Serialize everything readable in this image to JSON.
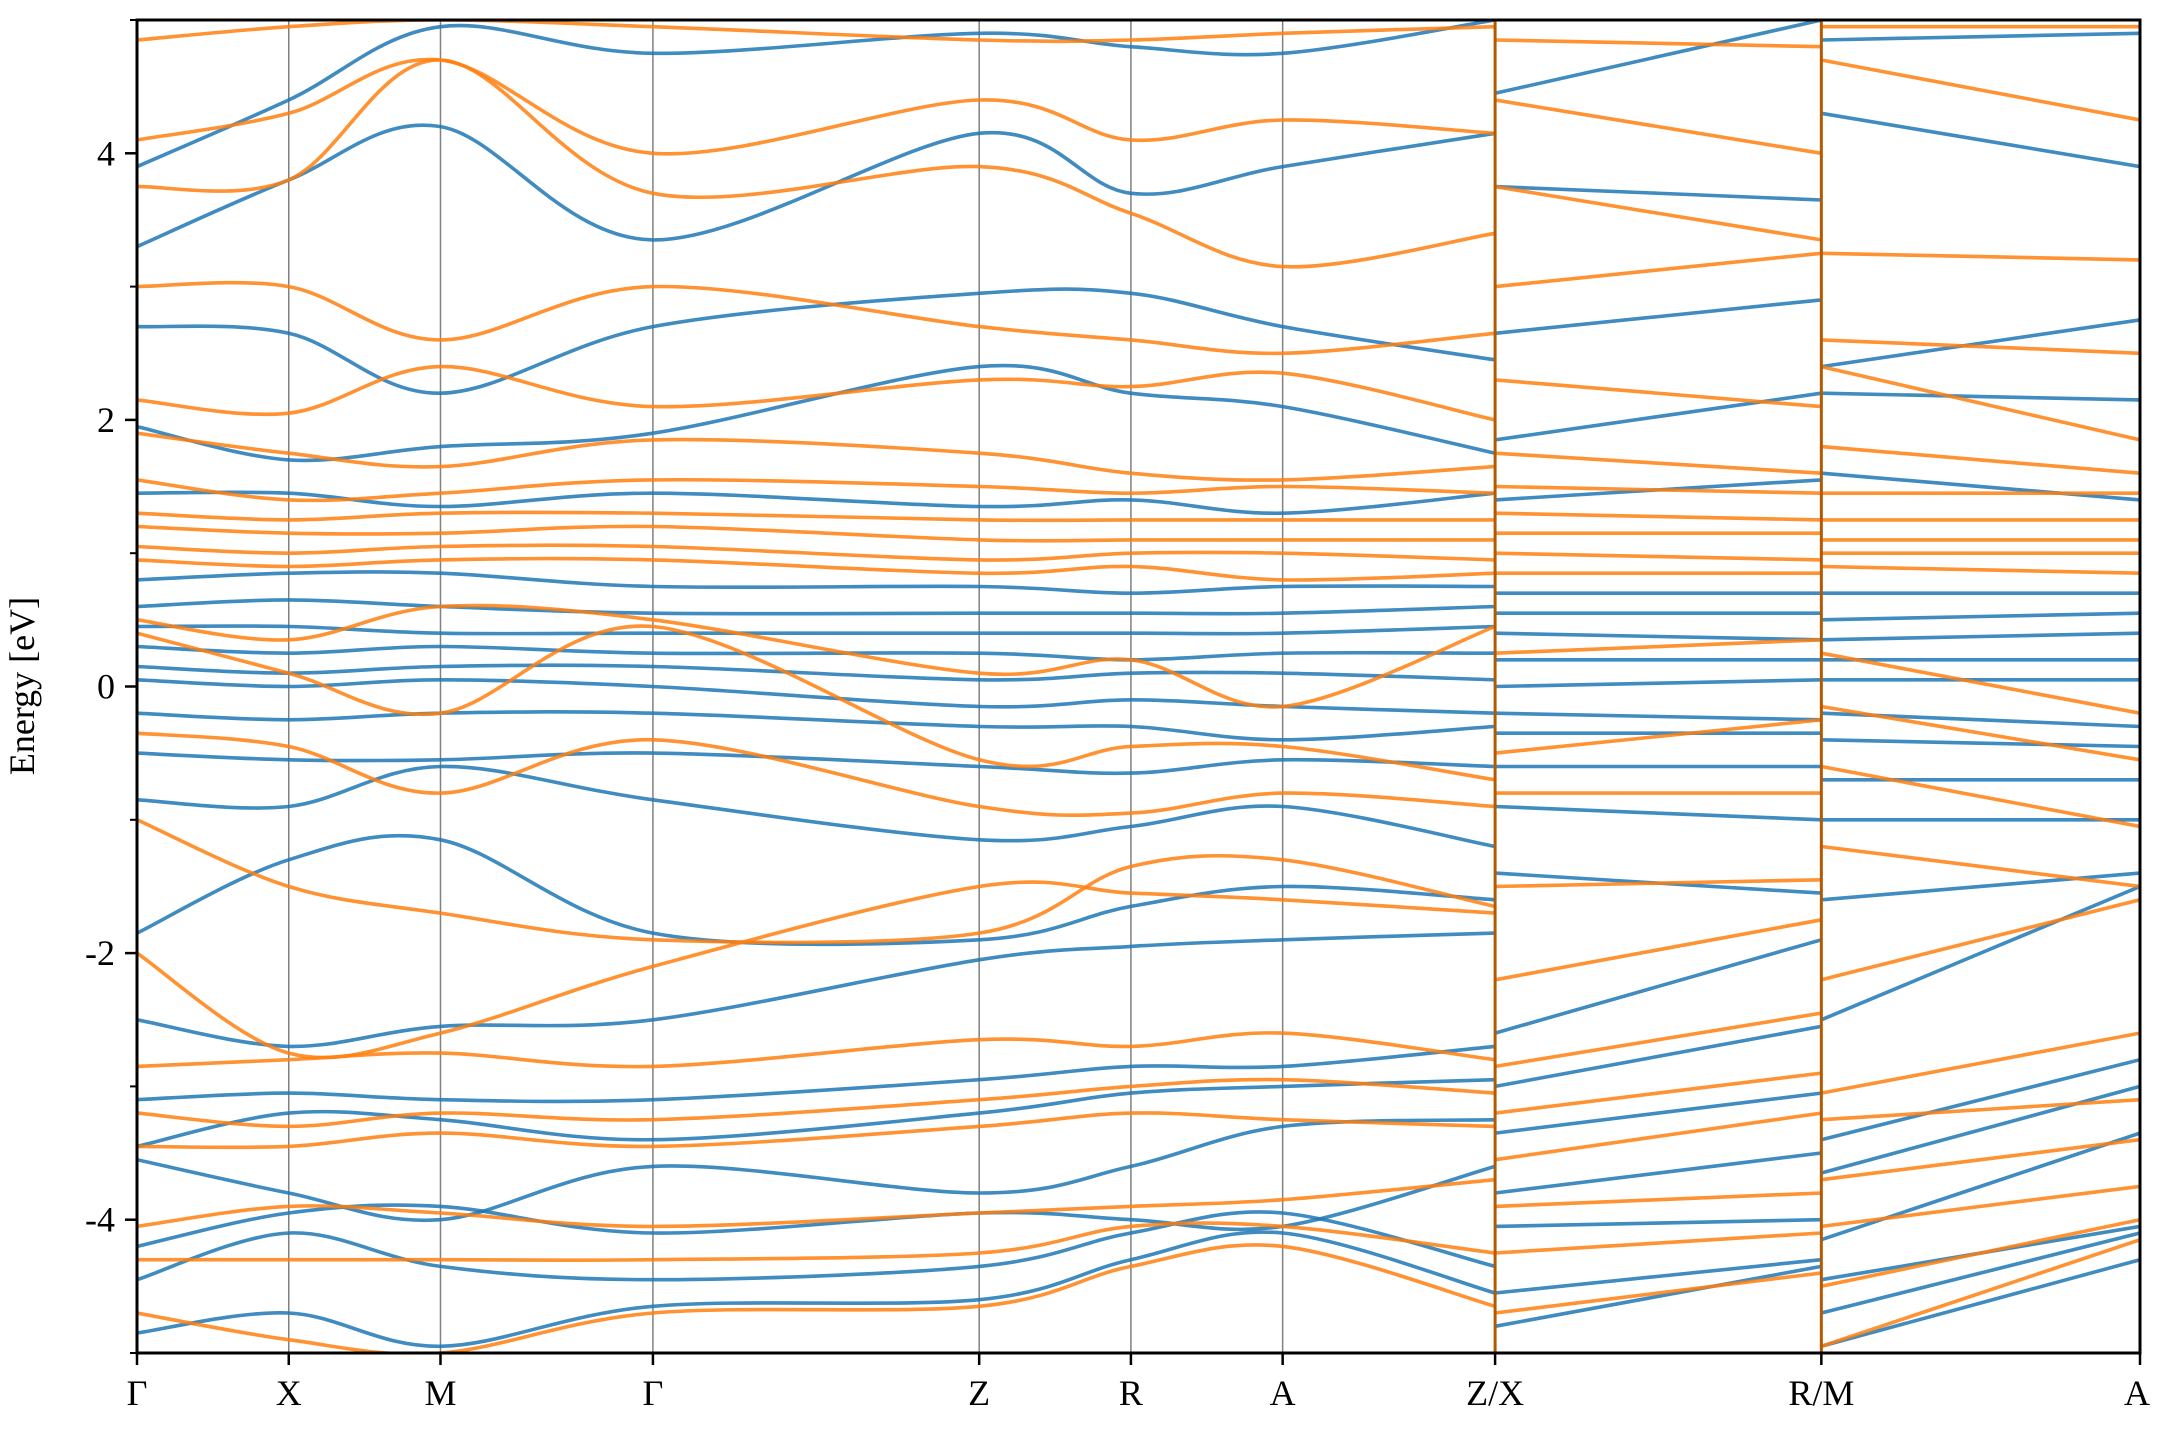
{
  "chart_data": {
    "type": "line",
    "title": "",
    "xlabel": "",
    "ylabel": "Energy [eV]",
    "ylim": [
      -5,
      5
    ],
    "y_ticks": [
      -4,
      -2,
      0,
      2,
      4
    ],
    "y_tick_labels": [
      "-4",
      "-2",
      "0",
      "2",
      "4"
    ],
    "y_minor_ticks": [
      -5,
      -3,
      -1,
      1,
      3,
      5
    ],
    "x_ticks": [
      0,
      1,
      2,
      3.4,
      5.55,
      6.55,
      7.55,
      8.95,
      11.1,
      13.2
    ],
    "x_tick_labels": [
      "Γ",
      "X",
      "M",
      "Γ",
      "Z",
      "R",
      "A",
      "Z/X",
      "R/M",
      "A"
    ],
    "xlim": [
      0,
      13.2
    ],
    "segment_breaks": [
      8.95,
      11.1
    ],
    "grid": "vertical lines at high-symmetry points",
    "legend": "none",
    "colors": {
      "spin_up": "#1f77b4",
      "spin_down": "#ff7f0e",
      "vline": "#808080",
      "frame": "#000000"
    },
    "series": [
      {
        "color": "spin_up",
        "x": [
          0,
          1,
          2,
          3.4,
          5.55,
          6.55,
          7.55,
          8.95,
          8.95,
          11.1,
          11.1,
          13.2
        ],
        "bands": [
          [
            -4.85,
            -4.7,
            -4.95,
            -4.65,
            -4.6,
            -4.3,
            -4.1,
            -4.55,
            -4.8,
            -4.35,
            -4.95,
            -4.3
          ],
          [
            -4.45,
            -4.1,
            -4.35,
            -4.45,
            -4.35,
            -4.1,
            -3.95,
            -4.35,
            -4.55,
            -4.3,
            -4.7,
            -4.1
          ],
          [
            -4.2,
            -3.95,
            -3.9,
            -4.1,
            -3.95,
            -4.0,
            -4.05,
            -3.6,
            -4.05,
            -4.0,
            -4.45,
            -4.05
          ],
          [
            -3.55,
            -3.8,
            -4.0,
            -3.6,
            -3.8,
            -3.6,
            -3.3,
            -3.25,
            -3.8,
            -3.5,
            -4.15,
            -3.35
          ],
          [
            -3.45,
            -3.2,
            -3.25,
            -3.4,
            -3.2,
            -3.05,
            -3.0,
            -2.95,
            -3.35,
            -3.05,
            -3.65,
            -3.0
          ],
          [
            -3.1,
            -3.05,
            -3.1,
            -3.1,
            -2.95,
            -2.85,
            -2.85,
            -2.7,
            -3.0,
            -2.55,
            -3.4,
            -2.8
          ],
          [
            -2.5,
            -2.7,
            -2.55,
            -2.5,
            -2.05,
            -1.95,
            -1.9,
            -1.85,
            -2.6,
            -1.9,
            -2.5,
            -1.5
          ],
          [
            -1.85,
            -1.3,
            -1.15,
            -1.85,
            -1.9,
            -1.65,
            -1.5,
            -1.6,
            -1.4,
            -1.55,
            -1.6,
            -1.4
          ],
          [
            -0.85,
            -0.9,
            -0.6,
            -0.85,
            -1.15,
            -1.05,
            -0.9,
            -1.2,
            -0.9,
            -1.0,
            -1.0,
            -1.0
          ],
          [
            -0.5,
            -0.55,
            -0.55,
            -0.5,
            -0.6,
            -0.65,
            -0.55,
            -0.6,
            -0.6,
            -0.6,
            -0.7,
            -0.7
          ],
          [
            -0.2,
            -0.25,
            -0.2,
            -0.2,
            -0.3,
            -0.3,
            -0.4,
            -0.3,
            -0.35,
            -0.35,
            -0.4,
            -0.45
          ],
          [
            0.05,
            0.0,
            0.05,
            0.0,
            -0.15,
            -0.1,
            -0.15,
            -0.2,
            -0.2,
            -0.25,
            -0.2,
            -0.3
          ],
          [
            0.15,
            0.1,
            0.15,
            0.15,
            0.05,
            0.1,
            0.1,
            0.05,
            0.0,
            0.05,
            0.05,
            0.05
          ],
          [
            0.3,
            0.25,
            0.3,
            0.25,
            0.25,
            0.2,
            0.25,
            0.25,
            0.2,
            0.2,
            0.2,
            0.2
          ],
          [
            0.45,
            0.45,
            0.4,
            0.4,
            0.4,
            0.4,
            0.4,
            0.45,
            0.4,
            0.35,
            0.35,
            0.4
          ],
          [
            0.6,
            0.65,
            0.6,
            0.55,
            0.55,
            0.55,
            0.55,
            0.6,
            0.55,
            0.55,
            0.5,
            0.55
          ],
          [
            0.8,
            0.85,
            0.85,
            0.75,
            0.75,
            0.7,
            0.75,
            0.75,
            0.7,
            0.7,
            0.7,
            0.7
          ],
          [
            1.45,
            1.45,
            1.35,
            1.45,
            1.35,
            1.4,
            1.3,
            1.45,
            1.4,
            1.55,
            1.6,
            1.4
          ],
          [
            1.95,
            1.7,
            1.8,
            1.9,
            2.4,
            2.2,
            2.1,
            1.75,
            1.85,
            2.2,
            2.2,
            2.15
          ],
          [
            2.7,
            2.65,
            2.2,
            2.7,
            2.95,
            2.95,
            2.7,
            2.45,
            2.65,
            2.9,
            2.4,
            2.75
          ],
          [
            3.3,
            3.8,
            4.2,
            3.35,
            4.15,
            3.7,
            3.9,
            4.15,
            3.75,
            3.65,
            4.3,
            3.9
          ],
          [
            3.9,
            4.4,
            4.95,
            4.75,
            4.9,
            4.8,
            4.75,
            5.0,
            4.45,
            5.0,
            4.85,
            4.9
          ]
        ]
      },
      {
        "color": "spin_down",
        "x": [
          0,
          1,
          2,
          3.4,
          5.55,
          6.55,
          7.55,
          8.95,
          8.95,
          11.1,
          11.1,
          13.2
        ],
        "bands": [
          [
            -4.7,
            -4.9,
            -5.0,
            -4.7,
            -4.65,
            -4.35,
            -4.2,
            -4.65,
            -4.7,
            -4.4,
            -4.95,
            -4.15
          ],
          [
            -4.3,
            -4.3,
            -4.3,
            -4.3,
            -4.25,
            -4.05,
            -4.05,
            -4.25,
            -4.25,
            -4.1,
            -4.5,
            -4.0
          ],
          [
            -4.05,
            -3.9,
            -3.95,
            -4.05,
            -3.95,
            -3.9,
            -3.85,
            -3.7,
            -3.9,
            -3.8,
            -4.05,
            -3.75
          ],
          [
            -3.45,
            -3.45,
            -3.35,
            -3.45,
            -3.3,
            -3.2,
            -3.25,
            -3.3,
            -3.55,
            -3.2,
            -3.7,
            -3.4
          ],
          [
            -3.2,
            -3.3,
            -3.2,
            -3.25,
            -3.1,
            -3.0,
            -2.95,
            -3.05,
            -3.2,
            -2.9,
            -3.25,
            -3.1
          ],
          [
            -2.85,
            -2.8,
            -2.75,
            -2.85,
            -2.65,
            -2.7,
            -2.6,
            -2.8,
            -2.85,
            -2.45,
            -3.05,
            -2.6
          ],
          [
            -2.0,
            -2.75,
            -2.6,
            -2.1,
            -1.5,
            -1.55,
            -1.6,
            -1.7,
            -2.2,
            -1.75,
            -2.2,
            -1.6
          ],
          [
            -1.0,
            -1.5,
            -1.7,
            -1.9,
            -1.85,
            -1.35,
            -1.3,
            -1.65,
            -1.5,
            -1.45,
            -1.2,
            -1.5
          ],
          [
            -0.35,
            -0.45,
            -0.8,
            -0.4,
            -0.9,
            -0.95,
            -0.8,
            -0.9,
            -0.8,
            -0.8,
            -0.6,
            -1.05
          ],
          [
            0.4,
            0.1,
            -0.2,
            0.45,
            -0.55,
            -0.45,
            -0.45,
            -0.7,
            -0.5,
            -0.25,
            -0.15,
            -0.55
          ],
          [
            0.5,
            0.35,
            0.6,
            0.5,
            0.1,
            0.2,
            -0.15,
            0.45,
            0.25,
            0.35,
            0.25,
            -0.2
          ],
          [
            0.95,
            0.9,
            0.95,
            0.95,
            0.85,
            0.9,
            0.8,
            0.85,
            0.85,
            0.85,
            0.9,
            0.85
          ],
          [
            1.05,
            1.0,
            1.05,
            1.05,
            0.95,
            1.0,
            1.0,
            0.95,
            1.0,
            0.95,
            1.0,
            1.0
          ],
          [
            1.2,
            1.15,
            1.15,
            1.2,
            1.1,
            1.1,
            1.1,
            1.1,
            1.15,
            1.15,
            1.1,
            1.1
          ],
          [
            1.3,
            1.25,
            1.3,
            1.3,
            1.25,
            1.25,
            1.25,
            1.25,
            1.3,
            1.25,
            1.25,
            1.25
          ],
          [
            1.55,
            1.4,
            1.45,
            1.55,
            1.5,
            1.45,
            1.5,
            1.45,
            1.5,
            1.45,
            1.45,
            1.45
          ],
          [
            1.9,
            1.75,
            1.65,
            1.85,
            1.75,
            1.6,
            1.55,
            1.65,
            1.75,
            1.6,
            1.8,
            1.6
          ],
          [
            2.15,
            2.05,
            2.4,
            2.1,
            2.3,
            2.25,
            2.35,
            2.0,
            2.3,
            2.1,
            2.4,
            1.85
          ],
          [
            3.0,
            3.0,
            2.6,
            3.0,
            2.7,
            2.6,
            2.5,
            2.65,
            3.0,
            3.25,
            2.6,
            2.5
          ],
          [
            3.75,
            3.8,
            4.7,
            3.7,
            3.9,
            3.55,
            3.15,
            3.4,
            3.75,
            3.35,
            3.25,
            3.2
          ],
          [
            4.1,
            4.3,
            4.7,
            4.0,
            4.4,
            4.1,
            4.25,
            4.15,
            4.4,
            4.0,
            4.7,
            4.25
          ],
          [
            4.85,
            4.95,
            5.0,
            4.95,
            4.85,
            4.85,
            4.9,
            4.95,
            4.85,
            4.8,
            4.95,
            4.95
          ]
        ]
      }
    ]
  }
}
